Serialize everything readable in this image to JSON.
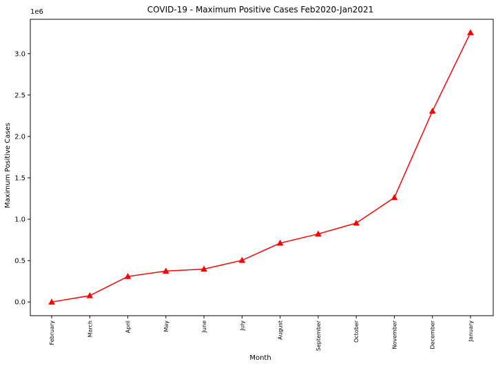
{
  "chart_data": {
    "type": "line",
    "title": "COVID-19 - Maximum Positive Cases Feb2020-Jan2021",
    "xlabel": "Month",
    "ylabel": "Maximum Positive Cases",
    "y_multiplier_label": "1e6",
    "categories": [
      "February",
      "March",
      "April",
      "May",
      "June",
      "July",
      "August",
      "September",
      "October",
      "November",
      "December",
      "January"
    ],
    "series": [
      {
        "color": "#ff0000",
        "marker": "triangle",
        "values": [
          3,
          77000,
          309000,
          374000,
          398000,
          504000,
          712000,
          822000,
          954000,
          1262000,
          2306000,
          3254000
        ]
      }
    ],
    "ylim": [
      -165000,
      3415000
    ],
    "yticks": [
      0,
      500000,
      1000000,
      1500000,
      2000000,
      2500000,
      3000000
    ],
    "ytick_labels": [
      "0.0",
      "0.5",
      "1.0",
      "1.5",
      "2.0",
      "2.5",
      "3.0"
    ],
    "grid": false,
    "legend": "none"
  }
}
